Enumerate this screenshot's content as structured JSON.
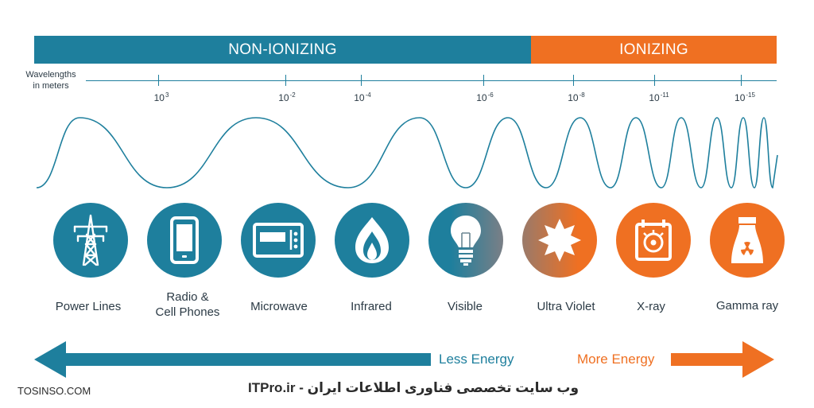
{
  "bands": {
    "non_ionizing": "NON-IONIZING",
    "ionizing": "IONIZING"
  },
  "axis": {
    "title_line1": "Wavelengths",
    "title_line2": "in meters",
    "ticks": [
      {
        "base": "10",
        "exp": "3"
      },
      {
        "base": "10",
        "exp": "-2"
      },
      {
        "base": "10",
        "exp": "-4"
      },
      {
        "base": "10",
        "exp": "-6"
      },
      {
        "base": "10",
        "exp": "-8"
      },
      {
        "base": "10",
        "exp": "-11"
      },
      {
        "base": "10",
        "exp": "-15"
      }
    ]
  },
  "categories": [
    {
      "label_line1": "Power Lines",
      "label_line2": "",
      "icon": "power-tower-icon",
      "color": "#1e7f9d"
    },
    {
      "label_line1": "Radio &",
      "label_line2": "Cell Phones",
      "icon": "cell-phone-icon",
      "color": "#1e7f9d"
    },
    {
      "label_line1": "Microwave",
      "label_line2": "",
      "icon": "microwave-icon",
      "color": "#1e7f9d"
    },
    {
      "label_line1": "Infrared",
      "label_line2": "",
      "icon": "flame-icon",
      "color": "#1e7f9d"
    },
    {
      "label_line1": "Visible",
      "label_line2": "",
      "icon": "light-bulb-icon",
      "color": "#1e7f9d"
    },
    {
      "label_line1": "Ultra Violet",
      "label_line2": "",
      "icon": "sun-icon",
      "color": "#ef7022"
    },
    {
      "label_line1": "X-ray",
      "label_line2": "",
      "icon": "x-ray-machine-icon",
      "color": "#ef7022"
    },
    {
      "label_line1": "Gamma ray",
      "label_line2": "",
      "icon": "radiation-plant-icon",
      "color": "#ef7022"
    }
  ],
  "energy": {
    "less": "Less Energy",
    "more": "More Energy"
  },
  "watermarks": {
    "left": "TOSINSO.COM",
    "right": "ITPro.ir - وب سایت تخصصی فناوری اطلاعات ایران"
  },
  "colors": {
    "non_ionizing": "#1e7f9d",
    "ionizing": "#ef7022"
  }
}
